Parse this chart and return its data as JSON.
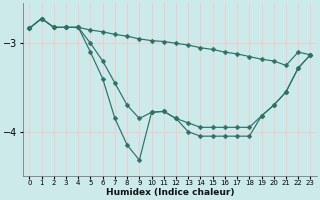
{
  "xlabel": "Humidex (Indice chaleur)",
  "bg_color": "#cceaea",
  "line_color": "#2e7068",
  "grid_color": "#f5c8c8",
  "xlim": [
    -0.5,
    23.5
  ],
  "ylim": [
    -4.5,
    -2.55
  ],
  "yticks": [
    -4,
    -3
  ],
  "xticks": [
    0,
    1,
    2,
    3,
    4,
    5,
    6,
    7,
    8,
    9,
    10,
    11,
    12,
    13,
    14,
    15,
    16,
    17,
    18,
    19,
    20,
    21,
    22,
    23
  ],
  "line1_x": [
    0,
    1,
    2,
    3,
    4,
    5,
    6,
    7,
    8,
    9,
    10,
    11,
    12,
    13,
    14,
    15,
    16,
    17,
    18,
    19,
    20,
    21,
    22,
    23
  ],
  "line1_y": [
    -2.83,
    -2.72,
    -2.82,
    -2.82,
    -2.82,
    -2.85,
    -2.87,
    -2.9,
    -2.92,
    -2.95,
    -2.97,
    -2.98,
    -3.0,
    -3.02,
    -3.05,
    -3.07,
    -3.1,
    -3.12,
    -3.15,
    -3.18,
    -3.2,
    -3.25,
    -3.1,
    -3.13
  ],
  "line2_x": [
    0,
    1,
    2,
    3,
    4,
    5,
    6,
    7,
    8,
    9,
    10,
    11,
    12,
    13,
    14,
    15,
    16,
    17,
    18,
    19,
    20,
    21,
    22,
    23
  ],
  "line2_y": [
    -2.83,
    -2.72,
    -2.82,
    -2.82,
    -2.82,
    -3.0,
    -3.2,
    -3.45,
    -3.7,
    -3.85,
    -3.78,
    -3.77,
    -3.85,
    -3.9,
    -3.95,
    -3.95,
    -3.95,
    -3.95,
    -3.95,
    -3.82,
    -3.7,
    -3.55,
    -3.28,
    -3.13
  ],
  "line3_x": [
    0,
    1,
    2,
    3,
    4,
    5,
    6,
    7,
    8,
    9,
    10,
    11,
    12,
    13,
    14,
    15,
    16,
    17,
    18,
    19,
    20,
    21,
    22,
    23
  ],
  "line3_y": [
    -2.83,
    -2.72,
    -2.82,
    -2.82,
    -2.82,
    -3.1,
    -3.4,
    -3.85,
    -4.15,
    -4.32,
    -3.78,
    -3.77,
    -3.85,
    -4.0,
    -4.05,
    -4.05,
    -4.05,
    -4.05,
    -4.05,
    -3.82,
    -3.7,
    -3.55,
    -3.28,
    -3.13
  ]
}
